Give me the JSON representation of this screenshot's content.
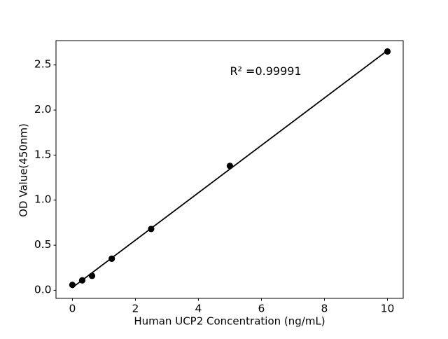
{
  "figure": {
    "background": "#ffffff"
  },
  "chart_data": {
    "type": "scatter",
    "title": "",
    "xlabel": "Human UCP2 Concentration (ng/mL)",
    "ylabel": "OD Value(450nm)",
    "x": [
      0,
      0.3125,
      0.625,
      1.25,
      2.5,
      5,
      10
    ],
    "y": [
      0.06,
      0.11,
      0.16,
      0.35,
      0.68,
      1.38,
      2.65
    ],
    "fit_line": {
      "x": [
        0,
        10
      ],
      "y": [
        0.03,
        2.66
      ]
    },
    "annotation": {
      "text": "R² =0.99991",
      "x": 5,
      "y": 2.39
    },
    "xticks": {
      "values": [
        0,
        2,
        4,
        6,
        8,
        10
      ],
      "labels": [
        "0",
        "2",
        "4",
        "6",
        "8",
        "10"
      ]
    },
    "yticks": {
      "values": [
        0,
        0.5,
        1.0,
        1.5,
        2.0,
        2.5
      ],
      "labels": [
        "0.0",
        "0.5",
        "1.0",
        "1.5",
        "2.0",
        "2.5"
      ]
    },
    "xlim": [
      -0.52,
      10.5
    ],
    "ylim": [
      -0.09,
      2.77
    ],
    "grid": false,
    "legend": null,
    "marker_color": "#000000",
    "line_color": "#000000",
    "axis_color": "#000000"
  }
}
